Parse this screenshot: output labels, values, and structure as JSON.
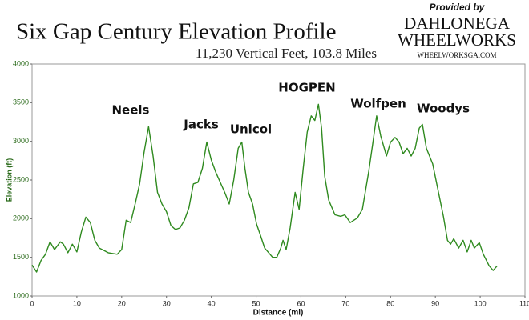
{
  "chart_data": {
    "type": "line",
    "title": "Six Gap Century Elevation Profile",
    "subtitle": "11,230 Vertical Feet, 103.8 Miles",
    "xlabel": "Distance (mi)",
    "ylabel": "Elevation (ft)",
    "annotations": [
      "Neels",
      "Jacks",
      "Unicoi",
      "HOGPEN",
      "Wolfpen",
      "Woodys"
    ],
    "logo": {
      "line1": "Provided by",
      "line2": "DAHLONEGA",
      "line3": "WHEELWORKS",
      "line4": "WHEELWORKSGA.COM"
    },
    "color": "#2f8a1f",
    "grid": false,
    "xlim": [
      0,
      110
    ],
    "ylim": [
      1000,
      4000
    ],
    "xticks": [
      0,
      10,
      20,
      30,
      40,
      50,
      60,
      70,
      80,
      90,
      100,
      110
    ],
    "yticks": [
      1000,
      1500,
      2000,
      2500,
      3000,
      3500,
      4000
    ],
    "x": [
      0,
      1,
      2,
      3,
      4,
      5,
      6.3,
      7,
      8,
      9,
      10,
      11,
      12,
      13,
      14,
      15,
      17,
      19,
      20,
      21,
      22,
      23,
      24,
      25,
      26,
      27,
      28,
      29,
      30,
      31,
      32,
      33,
      34,
      35,
      36,
      37,
      38,
      39,
      40,
      41,
      43,
      44,
      45,
      46,
      46.8,
      47.5,
      48.3,
      49.2,
      50.1,
      51.0,
      51.9,
      53.7,
      54.6,
      55.5,
      56.0,
      56.7,
      57.6,
      58.7,
      59.6,
      60.5,
      61.4,
      62.3,
      63.1,
      63.9,
      64.6,
      65.3,
      66.2,
      67.6,
      68.9,
      69.8,
      71.0,
      72.6,
      73.7,
      75.1,
      76.0,
      76.9,
      77.8,
      79.1,
      80.0,
      81.0,
      81.9,
      82.8,
      83.7,
      84.6,
      85.5,
      86.4,
      87.1,
      88.0,
      89.4,
      90.7,
      91.8,
      92.7,
      93.4,
      94.1,
      95.2,
      96.2,
      97.1,
      98.0,
      98.7,
      99.8,
      100.7,
      102.0,
      102.9,
      103.8
    ],
    "values": [
      1400,
      1310,
      1460,
      1540,
      1700,
      1600,
      1700,
      1670,
      1560,
      1670,
      1570,
      1830,
      2020,
      1950,
      1720,
      1620,
      1560,
      1540,
      1600,
      1980,
      1950,
      2190,
      2450,
      2860,
      3190,
      2810,
      2340,
      2190,
      2090,
      1910,
      1860,
      1880,
      1980,
      2140,
      2450,
      2470,
      2650,
      2990,
      2760,
      2600,
      2340,
      2190,
      2500,
      2910,
      2990,
      2650,
      2340,
      2190,
      1930,
      1780,
      1620,
      1500,
      1500,
      1620,
      1720,
      1600,
      1880,
      2340,
      2120,
      2650,
      3120,
      3330,
      3270,
      3480,
      3170,
      2550,
      2240,
      2050,
      2030,
      2050,
      1950,
      2010,
      2120,
      2600,
      2960,
      3330,
      3070,
      2810,
      2990,
      3050,
      2990,
      2840,
      2910,
      2810,
      2910,
      3170,
      3220,
      2910,
      2710,
      2340,
      2030,
      1720,
      1670,
      1740,
      1620,
      1720,
      1570,
      1720,
      1620,
      1690,
      1540,
      1390,
      1330,
      1390
    ]
  }
}
